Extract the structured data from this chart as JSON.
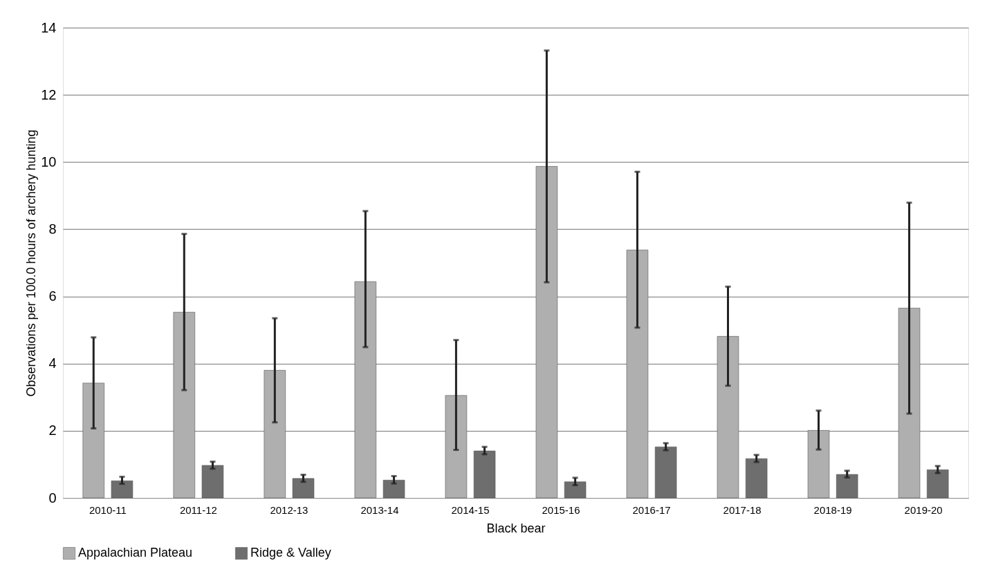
{
  "chart_data": {
    "type": "bar",
    "xlabel": "Black bear",
    "ylabel": "Observations per 100.0 hours of archery hunting",
    "categories": [
      "2010-11",
      "2011-12",
      "2012-13",
      "2013-14",
      "2014-15",
      "2015-16",
      "2016-17",
      "2017-18",
      "2018-19",
      "2019-20"
    ],
    "series": [
      {
        "name": "Appalachian Plateau",
        "color": "#afafaf",
        "values": [
          3.42,
          5.53,
          3.8,
          6.44,
          3.05,
          9.87,
          7.38,
          4.81,
          2.01,
          5.65
        ],
        "errors": [
          [
            2.07,
            4.78
          ],
          [
            3.21,
            7.86
          ],
          [
            2.25,
            5.35
          ],
          [
            4.49,
            8.54
          ],
          [
            1.43,
            4.7
          ],
          [
            6.42,
            13.32
          ],
          [
            5.07,
            9.71
          ],
          [
            3.34,
            6.29
          ],
          [
            1.44,
            2.6
          ],
          [
            2.51,
            8.79
          ]
        ]
      },
      {
        "name": "Ridge & Valley",
        "color": "#6e6e6e",
        "values": [
          0.51,
          0.97,
          0.58,
          0.53,
          1.4,
          0.48,
          1.52,
          1.17,
          0.7,
          0.84
        ],
        "errors": [
          [
            0.42,
            0.63
          ],
          [
            0.87,
            1.08
          ],
          [
            0.48,
            0.69
          ],
          [
            0.43,
            0.65
          ],
          [
            1.3,
            1.52
          ],
          [
            0.38,
            0.6
          ],
          [
            1.42,
            1.63
          ],
          [
            1.07,
            1.28
          ],
          [
            0.61,
            0.81
          ],
          [
            0.74,
            0.95
          ]
        ]
      }
    ],
    "ylim": [
      0,
      14
    ],
    "yticks": [
      0,
      2,
      4,
      6,
      8,
      10,
      12,
      14
    ],
    "grid": "y",
    "legend": "bottom"
  }
}
